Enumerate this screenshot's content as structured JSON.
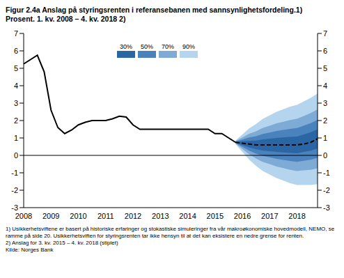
{
  "chart_data": {
    "type": "line",
    "title": "Figur 2.4a Anslag på styringsrenten i referansebanen med sannsynlighetsfordeling.1) Prosent. 1. kv. 2008 – 4. kv. 2018 2)",
    "categories": [
      "2008",
      null,
      null,
      null,
      "2009",
      null,
      null,
      null,
      "2010",
      null,
      null,
      null,
      "2011",
      null,
      null,
      null,
      "2012",
      null,
      null,
      null,
      "2013",
      null,
      null,
      null,
      "2014",
      null,
      null,
      null,
      "2015",
      null,
      null,
      null,
      "2016",
      null,
      null,
      null,
      "2017",
      null,
      null,
      null,
      "2018",
      null,
      null,
      null
    ],
    "series": [
      {
        "color": "#000000",
        "line_style": "solid",
        "values": [
          5.25,
          5.5,
          5.75,
          4.8,
          2.6,
          1.6,
          1.25,
          1.45,
          1.75,
          1.9,
          2.0,
          2.0,
          2.0,
          2.1,
          2.25,
          2.2,
          1.75,
          1.5,
          1.5,
          1.5,
          1.5,
          1.5,
          1.5,
          1.5,
          1.5,
          1.5,
          1.5,
          1.5,
          1.25,
          1.25,
          1.0,
          0.75,
          null,
          null,
          null,
          null,
          null,
          null,
          null,
          null,
          null,
          null,
          null,
          null
        ]
      },
      {
        "color": "#000000",
        "line_style": "dashed",
        "values": [
          null,
          null,
          null,
          null,
          null,
          null,
          null,
          null,
          null,
          null,
          null,
          null,
          null,
          null,
          null,
          null,
          null,
          null,
          null,
          null,
          null,
          null,
          null,
          null,
          null,
          null,
          null,
          null,
          null,
          null,
          null,
          0.75,
          0.7,
          0.65,
          0.6,
          0.6,
          0.6,
          0.6,
          0.6,
          0.6,
          0.6,
          0.65,
          0.75,
          0.95
        ]
      }
    ],
    "bands": [
      {
        "name": "30%",
        "color": "#2a66a4",
        "lower": [
          null,
          null,
          null,
          null,
          null,
          null,
          null,
          null,
          null,
          null,
          null,
          null,
          null,
          null,
          null,
          null,
          null,
          null,
          null,
          null,
          null,
          null,
          null,
          null,
          null,
          null,
          null,
          null,
          null,
          null,
          null,
          0.73,
          0.59,
          0.46,
          0.35,
          0.28,
          0.24,
          0.2,
          0.17,
          0.14,
          0.12,
          0.2,
          0.27,
          0.4
        ],
        "upper": [
          null,
          null,
          null,
          null,
          null,
          null,
          null,
          null,
          null,
          null,
          null,
          null,
          null,
          null,
          null,
          null,
          null,
          null,
          null,
          null,
          null,
          null,
          null,
          null,
          null,
          null,
          null,
          null,
          null,
          null,
          null,
          0.77,
          0.81,
          0.84,
          0.85,
          0.92,
          0.96,
          1.0,
          1.03,
          1.06,
          1.08,
          1.2,
          1.33,
          1.5
        ]
      },
      {
        "name": "50%",
        "color": "#4a82bd",
        "lower": [
          null,
          null,
          null,
          null,
          null,
          null,
          null,
          null,
          null,
          null,
          null,
          null,
          null,
          null,
          null,
          null,
          null,
          null,
          null,
          null,
          null,
          null,
          null,
          null,
          null,
          null,
          null,
          null,
          null,
          null,
          null,
          0.71,
          0.49,
          0.27,
          0.1,
          -0.03,
          -0.11,
          -0.2,
          -0.26,
          -0.32,
          -0.37,
          -0.31,
          -0.25,
          -0.14
        ],
        "upper": [
          null,
          null,
          null,
          null,
          null,
          null,
          null,
          null,
          null,
          null,
          null,
          null,
          null,
          null,
          null,
          null,
          null,
          null,
          null,
          null,
          null,
          null,
          null,
          null,
          null,
          null,
          null,
          null,
          null,
          null,
          null,
          0.79,
          0.91,
          1.03,
          1.1,
          1.23,
          1.31,
          1.4,
          1.46,
          1.52,
          1.57,
          1.71,
          1.85,
          2.04
        ]
      },
      {
        "name": "70%",
        "color": "#7eaad6",
        "lower": [
          null,
          null,
          null,
          null,
          null,
          null,
          null,
          null,
          null,
          null,
          null,
          null,
          null,
          null,
          null,
          null,
          null,
          null,
          null,
          null,
          null,
          null,
          null,
          null,
          null,
          null,
          null,
          null,
          null,
          null,
          null,
          0.68,
          0.37,
          0.06,
          -0.18,
          -0.38,
          -0.5,
          -0.64,
          -0.73,
          -0.83,
          -0.9,
          -0.86,
          -0.83,
          -0.74
        ],
        "upper": [
          null,
          null,
          null,
          null,
          null,
          null,
          null,
          null,
          null,
          null,
          null,
          null,
          null,
          null,
          null,
          null,
          null,
          null,
          null,
          null,
          null,
          null,
          null,
          null,
          null,
          null,
          null,
          null,
          null,
          null,
          null,
          0.82,
          1.03,
          1.24,
          1.38,
          1.58,
          1.7,
          1.84,
          1.93,
          2.03,
          2.1,
          2.26,
          2.43,
          2.64
        ]
      },
      {
        "name": "90%",
        "color": "#b5d4ee",
        "lower": [
          null,
          null,
          null,
          null,
          null,
          null,
          null,
          null,
          null,
          null,
          null,
          null,
          null,
          null,
          null,
          null,
          null,
          null,
          null,
          null,
          null,
          null,
          null,
          null,
          null,
          null,
          null,
          null,
          null,
          null,
          null,
          0.65,
          0.2,
          -0.25,
          -0.6,
          -0.9,
          -1.1,
          -1.3,
          -1.45,
          -1.6,
          -1.7,
          -1.7,
          -1.7,
          -1.65
        ],
        "upper": [
          null,
          null,
          null,
          null,
          null,
          null,
          null,
          null,
          null,
          null,
          null,
          null,
          null,
          null,
          null,
          null,
          null,
          null,
          null,
          null,
          null,
          null,
          null,
          null,
          null,
          null,
          null,
          null,
          null,
          null,
          null,
          0.85,
          1.2,
          1.55,
          1.8,
          2.1,
          2.3,
          2.5,
          2.65,
          2.8,
          2.9,
          3.1,
          3.3,
          3.55
        ]
      }
    ],
    "reference_lines": [
      0
    ],
    "ylim": [
      -3,
      7
    ],
    "yticks": [
      -3,
      -2,
      -1,
      0,
      1,
      2,
      3,
      4,
      5,
      6,
      7
    ],
    "notes": [
      "1) Usikkerhetsviftene er basert på historiske erfaringer og stokastiske simuleringer fra vår makroøkonomiske hovedmodell, NEMO, se ramme på side 20. Usikkerhetsviften for styringsrenten tar ikke hensyn til at det kan eksistere en nedre grense for renten.",
      "2) Anslag for 3. kv. 2015 – 4. kv. 2018 (stiplet)",
      "Kilde: Norges Bank"
    ]
  }
}
